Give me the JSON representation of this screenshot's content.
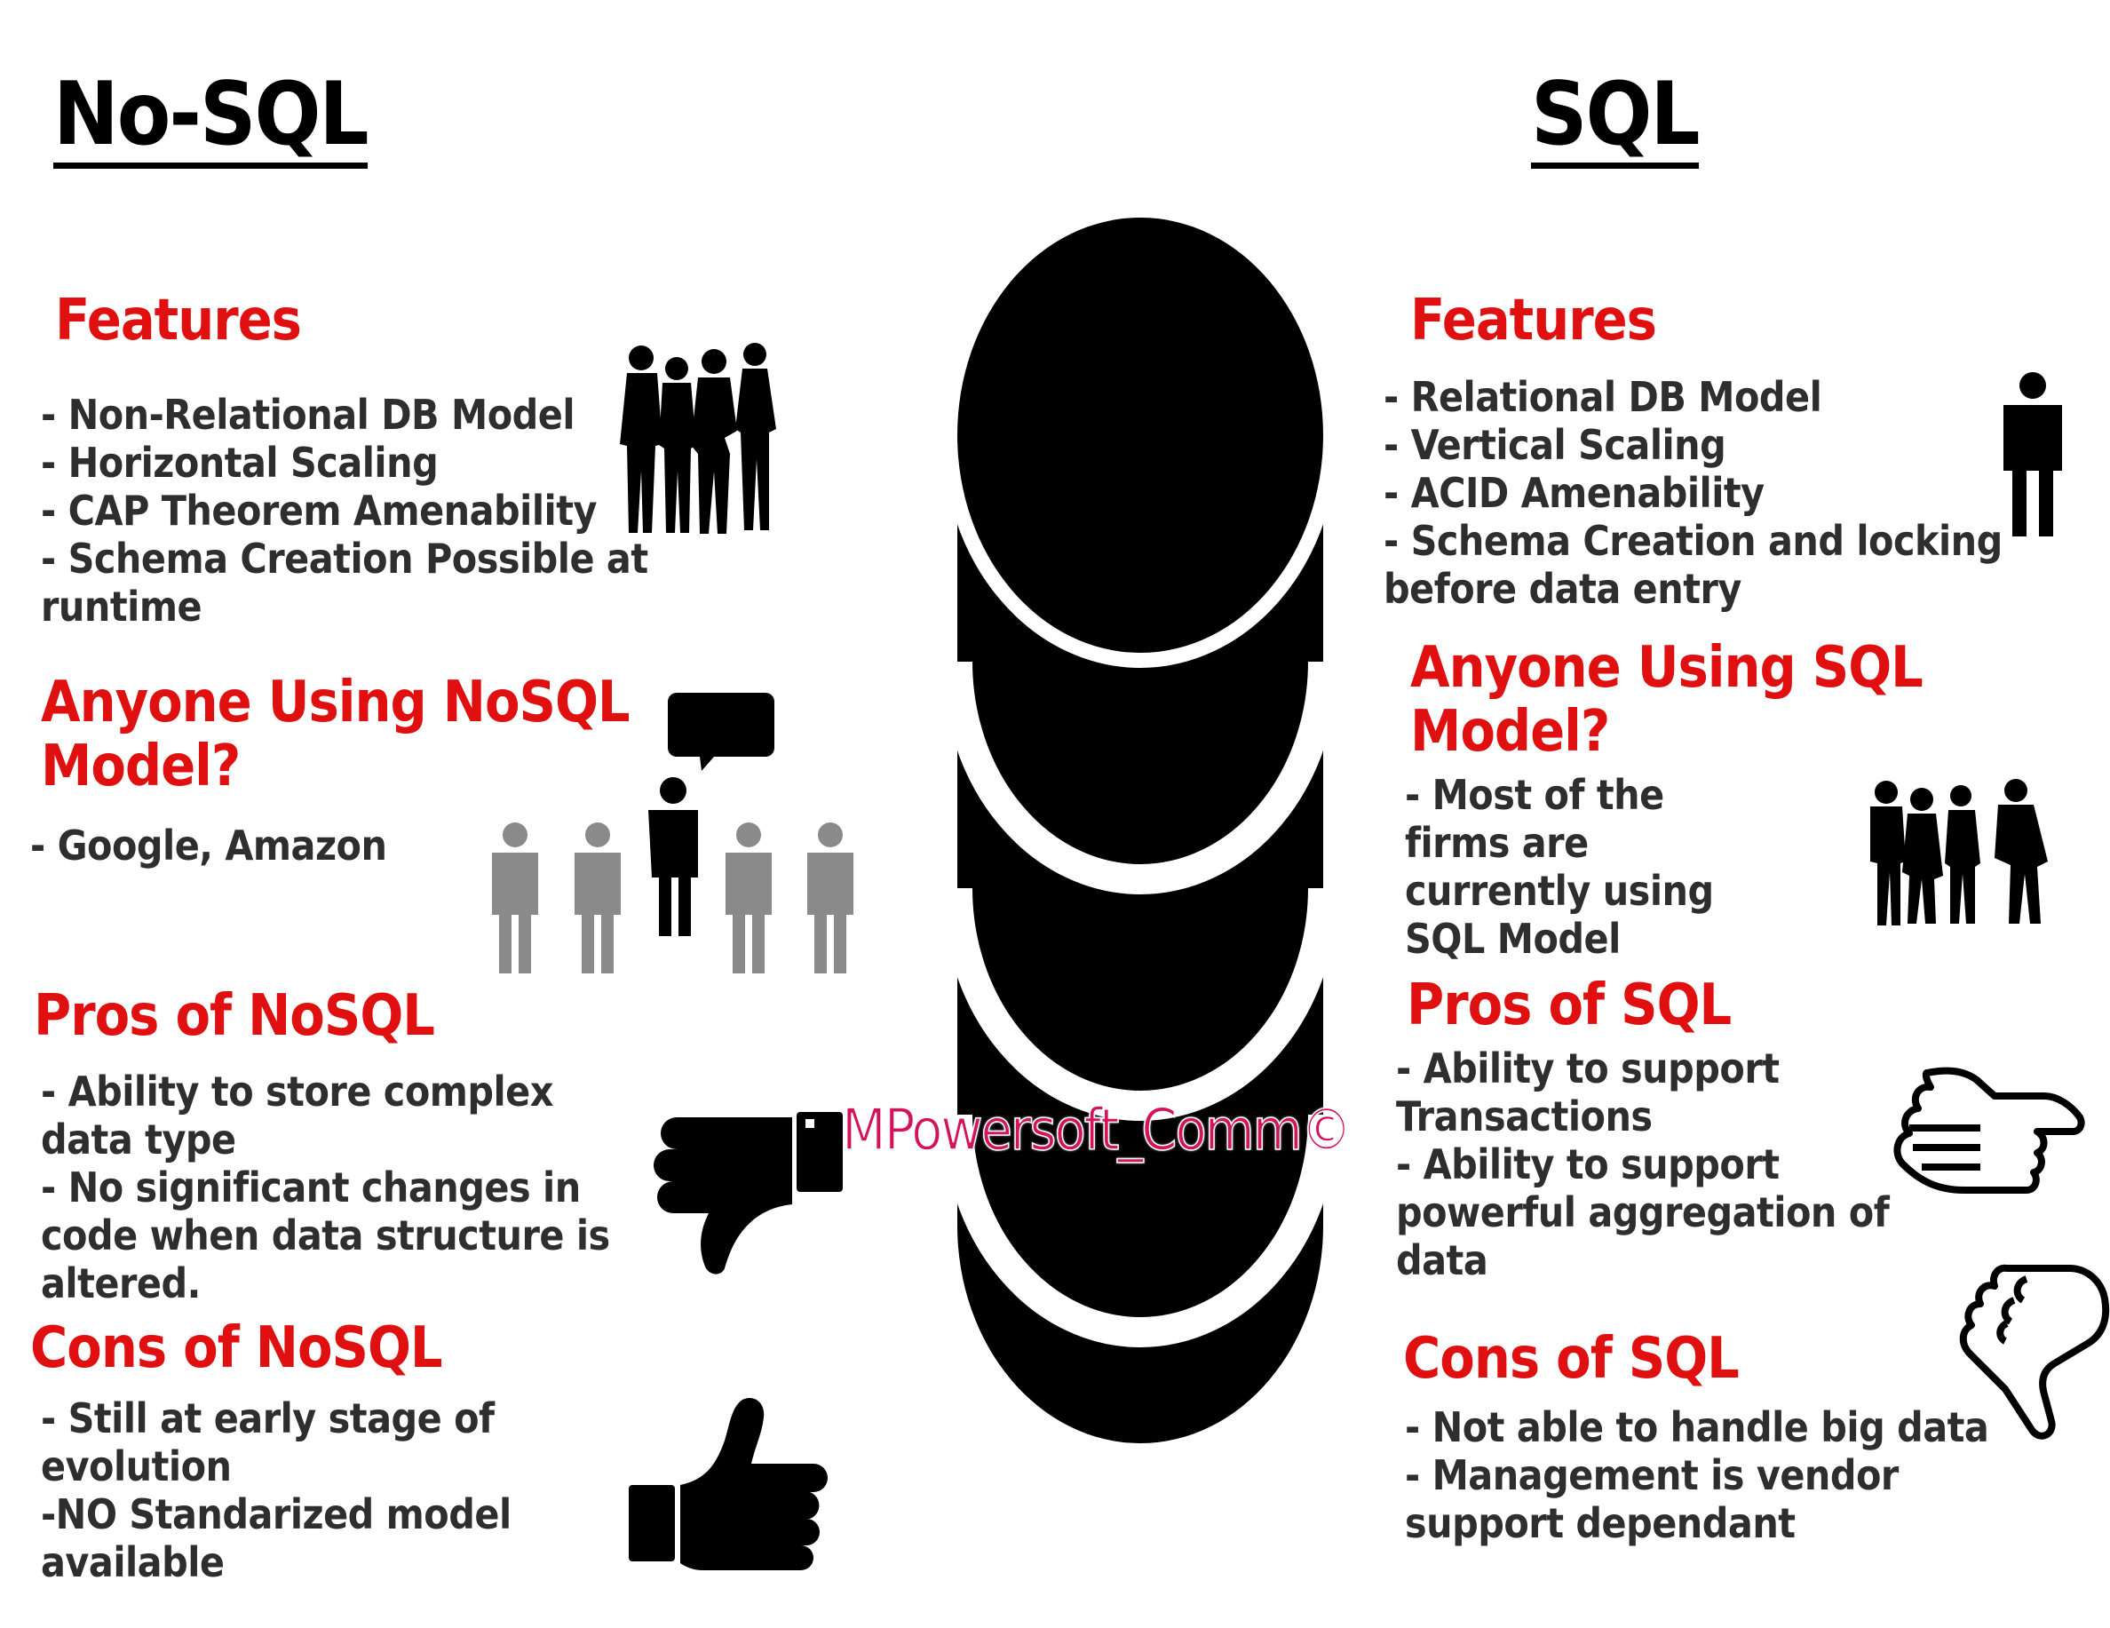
{
  "left": {
    "title": "No-SQL",
    "features_heading": "Features",
    "features": [
      "- Non-Relational DB Model",
      "- Horizontal Scaling",
      "- CAP Theorem Amenability",
      "- Schema Creation Possible at",
      "runtime"
    ],
    "users_heading": [
      "Anyone Using NoSQL",
      "Model?"
    ],
    "users": [
      "- Google, Amazon"
    ],
    "pros_heading": "Pros of NoSQL",
    "pros": [
      "- Ability to store complex",
      "data type",
      "- No significant changes in",
      "code when data structure is",
      "altered."
    ],
    "cons_heading": "Cons of NoSQL",
    "cons": [
      "- Still at early stage of",
      "evolution",
      "-NO Standarized model",
      "available"
    ]
  },
  "right": {
    "title": "SQL",
    "features_heading": "Features",
    "features": [
      "- Relational DB Model",
      "- Vertical Scaling",
      "- ACID Amenability",
      "- Schema Creation and locking",
      "before data entry"
    ],
    "users_heading": [
      "Anyone Using SQL",
      "Model?"
    ],
    "users": [
      "- Most of the",
      "firms are",
      "currently using",
      "SQL Model"
    ],
    "pros_heading": "Pros of SQL",
    "pros": [
      "- Ability to support",
      "Transactions",
      "- Ability to support",
      "powerful aggregation of",
      "data"
    ],
    "cons_heading": "Cons of SQL",
    "cons": [
      "- Not able to handle big data",
      "- Management is vendor",
      "support dependant"
    ]
  },
  "watermark": "MPowersoft_Comm©",
  "colors": {
    "heading": "#e01010",
    "title": "#000000",
    "body_text": "#2e2e2e",
    "icon": "#000000",
    "icon_gray": "#8a8a8a",
    "watermark": "#d4145a"
  },
  "icons": [
    "database-cylinder-icon",
    "group-of-women-icon",
    "speaking-person-crowd-icon",
    "thumbs-down-icon",
    "thumbs-up-icon",
    "single-person-icon",
    "business-group-icon",
    "thumbs-up-outline-icon",
    "thumbs-down-outline-icon"
  ]
}
